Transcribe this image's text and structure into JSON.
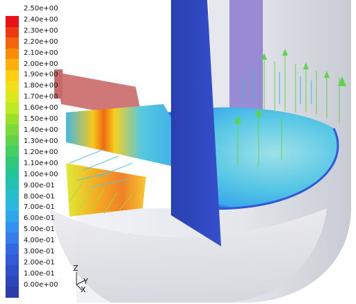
{
  "legend": {
    "labels": [
      "2.50e+00",
      "2.40e+00",
      "2.30e+00",
      "2.20e+00",
      "2.10e+00",
      "2.00e+00",
      "1.90e+00",
      "1.80e+00",
      "1.70e+00",
      "1.60e+00",
      "1.50e+00",
      "1.40e+00",
      "1.30e+00",
      "1.20e+00",
      "1.10e+00",
      "1.00e+00",
      "9.00e-01",
      "8.00e-01",
      "7.00e-01",
      "6.00e-01",
      "5.00e-01",
      "4.00e-01",
      "3.00e-01",
      "2.00e-01",
      "1.00e-01",
      "0.00e+00"
    ],
    "colors_top_to_bottom": [
      "#e8121a",
      "#ee3a10",
      "#f4640a",
      "#f98d06",
      "#fdb108",
      "#ffcf10",
      "#f3df18",
      "#dce81e",
      "#bdea22",
      "#9be12a",
      "#7dd93a",
      "#5fd44a",
      "#43d060",
      "#2ec97b",
      "#25c496",
      "#22c2b2",
      "#24c0ca",
      "#2ab8de",
      "#2fa6ea",
      "#3392ef",
      "#357ced",
      "#3467e4",
      "#325bd8",
      "#2f50c9",
      "#2d46ba",
      "#2b3da8"
    ]
  },
  "triad": {
    "z": "Z",
    "y": "Y",
    "x": "X"
  }
}
